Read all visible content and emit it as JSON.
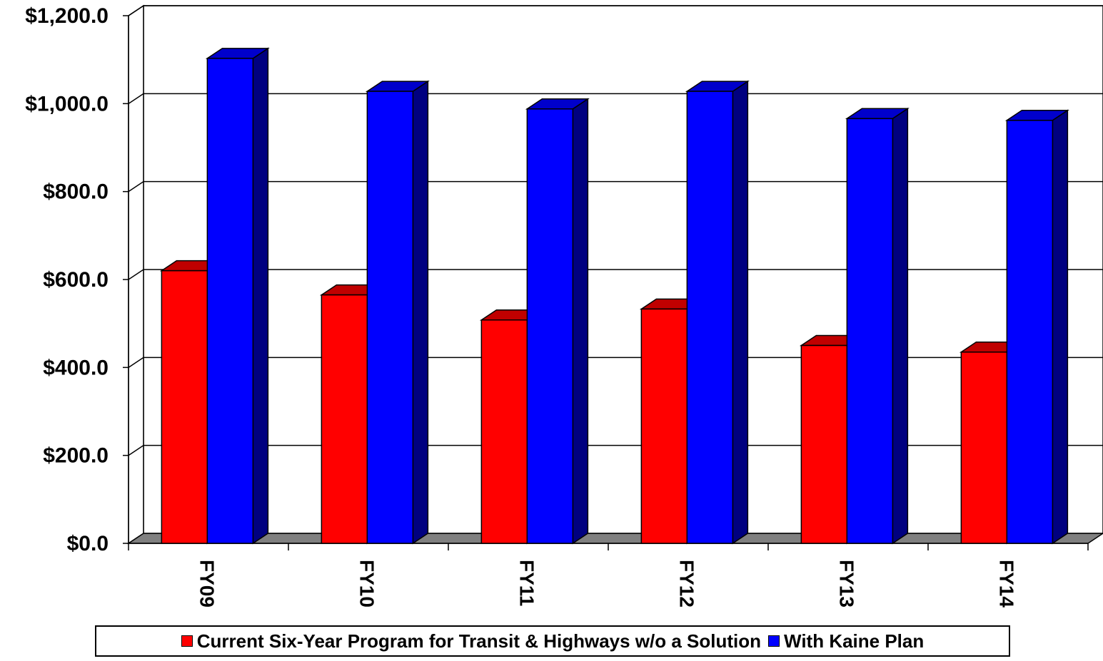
{
  "chart_data": {
    "type": "bar",
    "categories": [
      "FY09",
      "FY10",
      "FY11",
      "FY12",
      "FY13",
      "FY14"
    ],
    "series": [
      {
        "name": "Current Six-Year Program for Transit & Highways w/o a Solution",
        "values": [
          620,
          565,
          508,
          533,
          450,
          435
        ],
        "color": "#ff0000",
        "topColor": "#c00000",
        "sideColor": "#800000"
      },
      {
        "name": "With Kaine Plan",
        "values": [
          1103,
          1028,
          988,
          1028,
          966,
          962
        ],
        "color": "#0000ff",
        "topColor": "#0000cc",
        "sideColor": "#000080"
      }
    ],
    "y_tick_labels": [
      "$0.0",
      "$200.0",
      "$400.0",
      "$600.0",
      "$800.0",
      "$1,000.0",
      "$1,200.0"
    ],
    "ylim": [
      0,
      1200
    ],
    "grid": true,
    "legend_position": "bottom",
    "floor_color": "#808080"
  },
  "legend": {
    "item1": "Current Six-Year Program for Transit & Highways w/o a Solution",
    "item2": "With Kaine Plan"
  }
}
